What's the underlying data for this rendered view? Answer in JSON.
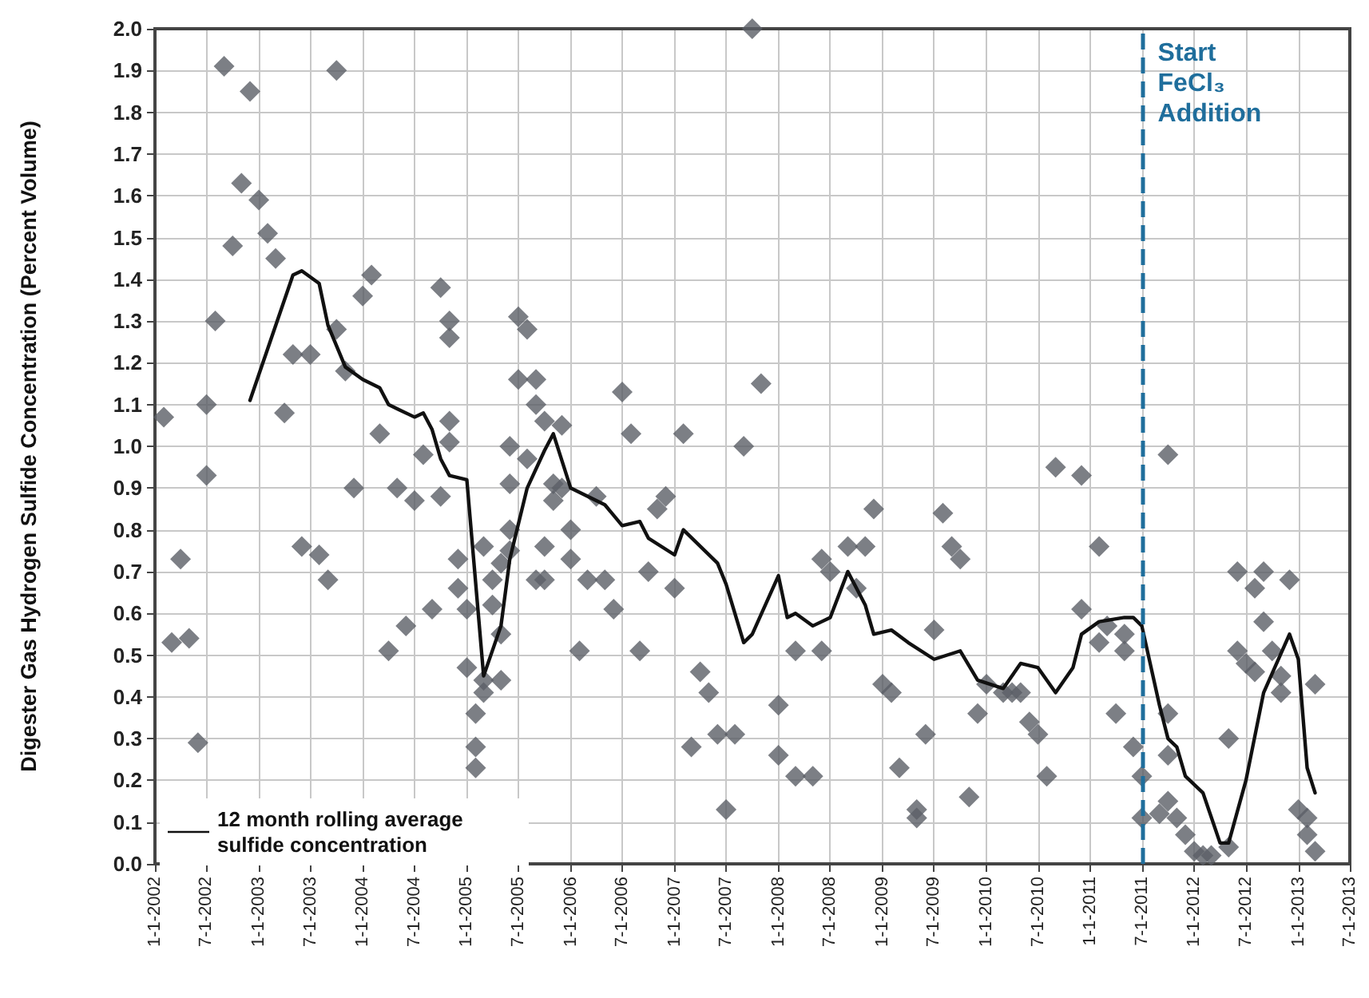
{
  "chart_data": {
    "type": "scatter",
    "ylabel": "Digester Gas Hydrogen Sulfide Concentration (Percent Volume)",
    "xlim": [
      "2002-01-01",
      "2013-07-01"
    ],
    "xticks": [
      {
        "value": "2002-01-01",
        "label": "1-1-2002"
      },
      {
        "value": "2002-07-01",
        "label": "7-1-2002"
      },
      {
        "value": "2003-01-01",
        "label": "1-1-2003"
      },
      {
        "value": "2003-07-01",
        "label": "7-1-2003"
      },
      {
        "value": "2004-01-01",
        "label": "1-1-2004"
      },
      {
        "value": "2004-07-01",
        "label": "7-1-2004"
      },
      {
        "value": "2005-01-01",
        "label": "1-1-2005"
      },
      {
        "value": "2005-07-01",
        "label": "7-1-2005"
      },
      {
        "value": "2006-01-01",
        "label": "1-1-2006"
      },
      {
        "value": "2006-07-01",
        "label": "7-1-2006"
      },
      {
        "value": "2007-01-01",
        "label": "1-1-2007"
      },
      {
        "value": "2007-07-01",
        "label": "7-1-2007"
      },
      {
        "value": "2008-01-01",
        "label": "1-1-2008"
      },
      {
        "value": "2008-07-01",
        "label": "7-1-2008"
      },
      {
        "value": "2009-01-01",
        "label": "1-1-2009"
      },
      {
        "value": "2009-07-01",
        "label": "7-1-2009"
      },
      {
        "value": "2010-01-01",
        "label": "1-1-2010"
      },
      {
        "value": "2010-07-01",
        "label": "7-1-2010"
      },
      {
        "value": "2011-01-01",
        "label": "1-1-2011"
      },
      {
        "value": "2011-07-01",
        "label": "7-1-2011"
      },
      {
        "value": "2012-01-01",
        "label": "1-1-2012"
      },
      {
        "value": "2012-07-01",
        "label": "7-1-2012"
      },
      {
        "value": "2013-01-01",
        "label": "1-1-2013"
      },
      {
        "value": "2013-07-01",
        "label": "7-1-2013"
      }
    ],
    "ylim": [
      0,
      2
    ],
    "yticks": [
      {
        "value": 0,
        "label": "0.0"
      },
      0.1,
      0.2,
      0.3,
      0.4,
      0.5,
      0.6,
      0.7,
      0.8,
      0.9,
      {
        "value": 1,
        "label": "1.0"
      },
      1.1,
      1.2,
      1.3,
      1.4,
      1.5,
      1.6,
      1.7,
      1.8,
      1.9,
      {
        "value": 2,
        "label": "2.0"
      }
    ],
    "grid": true,
    "legend": "bottom left",
    "ref_lines": [
      {
        "axis": "x",
        "value": "2011-07-01",
        "label": "Start FeCl₃ Addition",
        "color": "#1f6e9c",
        "line_style": "dashed"
      }
    ],
    "series": [
      {
        "color": "#5b5f66",
        "marker": "diamond",
        "x": [
          "2002-02",
          "2002-03",
          "2002-04",
          "2002-05",
          "2002-06",
          "2002-07",
          "2002-07",
          "2002-08",
          "2002-09",
          "2002-10",
          "2002-11",
          "2002-12",
          "2003-01",
          "2003-02",
          "2003-03",
          "2003-04",
          "2003-05",
          "2003-06",
          "2003-07",
          "2003-08",
          "2003-09",
          "2003-10",
          "2003-10",
          "2003-11",
          "2003-12",
          "2004-01",
          "2004-02",
          "2004-03",
          "2004-04",
          "2004-05",
          "2004-06",
          "2004-07",
          "2004-08",
          "2004-09",
          "2004-10",
          "2004-10",
          "2004-11",
          "2004-11",
          "2004-11",
          "2004-11",
          "2004-12",
          "2004-12",
          "2005-01",
          "2005-01",
          "2005-02",
          "2005-02",
          "2005-02",
          "2005-03",
          "2005-03",
          "2005-03",
          "2005-04",
          "2005-04",
          "2005-05",
          "2005-05",
          "2005-05",
          "2005-06",
          "2005-06",
          "2005-06",
          "2005-06",
          "2005-07",
          "2005-07",
          "2005-08",
          "2005-08",
          "2005-09",
          "2005-09",
          "2005-09",
          "2005-10",
          "2005-10",
          "2005-10",
          "2005-11",
          "2005-11",
          "2005-12",
          "2005-12",
          "2006-01",
          "2006-01",
          "2006-02",
          "2006-03",
          "2006-04",
          "2006-05",
          "2006-06",
          "2006-07",
          "2006-08",
          "2006-09",
          "2006-10",
          "2006-11",
          "2006-12",
          "2007-01",
          "2007-02",
          "2007-03",
          "2007-04",
          "2007-05",
          "2007-06",
          "2007-07",
          "2007-08",
          "2007-09",
          "2007-10",
          "2007-11",
          "2008-01",
          "2008-01",
          "2008-03",
          "2008-03",
          "2008-05",
          "2008-06",
          "2008-06",
          "2008-07",
          "2008-09",
          "2008-10",
          "2008-11",
          "2008-12",
          "2009-01",
          "2009-02",
          "2009-03",
          "2009-05",
          "2009-05",
          "2009-06",
          "2009-07",
          "2009-08",
          "2009-09",
          "2009-10",
          "2009-11",
          "2009-12",
          "2010-01",
          "2010-03",
          "2010-04",
          "2010-05",
          "2010-06",
          "2010-07",
          "2010-08",
          "2010-09",
          "2010-12",
          "2010-12",
          "2011-02",
          "2011-02",
          "2011-03",
          "2011-04",
          "2011-05",
          "2011-05",
          "2011-06",
          "2011-07",
          "2011-07",
          "2011-09",
          "2011-10",
          "2011-10",
          "2011-10",
          "2011-10",
          "2011-11",
          "2011-12",
          "2012-01",
          "2012-02",
          "2012-03",
          "2012-05",
          "2012-05",
          "2012-06",
          "2012-06",
          "2012-07",
          "2012-08",
          "2012-08",
          "2012-09",
          "2012-09",
          "2012-10",
          "2012-11",
          "2012-11",
          "2012-12",
          "2013-01",
          "2013-02",
          "2013-02",
          "2013-03",
          "2013-03"
        ],
        "values": [
          1.07,
          0.53,
          0.73,
          0.54,
          0.29,
          1.1,
          0.93,
          1.3,
          1.91,
          1.48,
          1.63,
          1.85,
          1.59,
          1.51,
          1.45,
          1.08,
          1.22,
          0.76,
          1.22,
          0.74,
          0.68,
          1.28,
          1.9,
          1.18,
          0.9,
          1.36,
          1.41,
          1.03,
          0.51,
          0.9,
          0.57,
          0.87,
          0.98,
          0.61,
          0.88,
          1.38,
          1.26,
          1.3,
          1.06,
          1.01,
          0.66,
          0.73,
          0.61,
          0.47,
          0.36,
          0.28,
          0.23,
          0.44,
          0.41,
          0.76,
          0.68,
          0.62,
          0.72,
          0.44,
          0.55,
          0.75,
          0.8,
          0.91,
          1.0,
          1.31,
          1.16,
          0.97,
          1.28,
          0.68,
          1.1,
          1.16,
          0.76,
          0.68,
          1.06,
          0.91,
          0.87,
          1.05,
          0.9,
          0.8,
          0.73,
          0.51,
          0.68,
          0.88,
          0.68,
          0.61,
          1.13,
          1.03,
          0.51,
          0.7,
          0.85,
          0.88,
          0.66,
          1.03,
          0.28,
          0.46,
          0.41,
          0.31,
          0.13,
          0.31,
          1.0,
          2.0,
          1.15,
          0.26,
          0.38,
          0.51,
          0.21,
          0.21,
          0.51,
          0.73,
          0.7,
          0.76,
          0.66,
          0.76,
          0.85,
          0.43,
          0.41,
          0.23,
          0.13,
          0.11,
          0.31,
          0.56,
          0.84,
          0.76,
          0.73,
          0.16,
          0.36,
          0.43,
          0.41,
          0.41,
          0.41,
          0.34,
          0.31,
          0.21,
          0.95,
          0.93,
          0.61,
          0.76,
          0.53,
          0.57,
          0.36,
          0.55,
          0.51,
          0.28,
          0.21,
          0.11,
          0.12,
          0.15,
          0.36,
          0.98,
          0.26,
          0.11,
          0.07,
          0.03,
          0.02,
          0.02,
          0.04,
          0.3,
          0.7,
          0.51,
          0.48,
          0.46,
          0.66,
          0.58,
          0.7,
          0.51,
          0.45,
          0.41,
          0.68,
          0.13,
          0.11,
          0.07,
          0.03,
          0.43
        ]
      },
      {
        "type": "line",
        "name": "12 month rolling average sulfide concentration",
        "color": "#111111",
        "marker": "none",
        "line_style": "solid",
        "x": [
          "2002-12",
          "2003-05",
          "2003-06",
          "2003-08",
          "2003-09",
          "2003-11",
          "2004-01",
          "2004-03",
          "2004-04",
          "2004-05",
          "2004-07",
          "2004-08",
          "2004-09",
          "2004-10",
          "2004-11",
          "2005-01",
          "2005-03",
          "2005-05",
          "2005-06",
          "2005-08",
          "2005-10",
          "2005-11",
          "2006-01",
          "2006-05",
          "2006-07",
          "2006-09",
          "2006-10",
          "2007-01",
          "2007-02",
          "2007-06",
          "2007-07",
          "2007-09",
          "2007-10",
          "2008-01",
          "2008-02",
          "2008-03",
          "2008-05",
          "2008-07",
          "2008-09",
          "2008-11",
          "2008-12",
          "2009-02",
          "2009-04",
          "2009-07",
          "2009-10",
          "2009-12",
          "2010-03",
          "2010-05",
          "2010-07",
          "2010-09",
          "2010-11",
          "2010-12",
          "2011-02",
          "2011-05",
          "2011-06",
          "2011-07",
          "2011-09",
          "2011-10",
          "2011-11",
          "2011-12",
          "2012-02",
          "2012-04",
          "2012-05",
          "2012-07",
          "2012-09",
          "2012-12",
          "2013-01",
          "2013-02",
          "2013-03"
        ],
        "values": [
          1.11,
          1.41,
          1.42,
          1.39,
          1.29,
          1.19,
          1.16,
          1.14,
          1.1,
          1.09,
          1.07,
          1.08,
          1.04,
          0.97,
          0.93,
          0.92,
          0.45,
          0.57,
          0.73,
          0.9,
          0.99,
          1.03,
          0.9,
          0.86,
          0.81,
          0.82,
          0.78,
          0.74,
          0.8,
          0.72,
          0.67,
          0.53,
          0.55,
          0.69,
          0.59,
          0.6,
          0.57,
          0.59,
          0.7,
          0.62,
          0.55,
          0.56,
          0.53,
          0.49,
          0.51,
          0.44,
          0.42,
          0.48,
          0.47,
          0.41,
          0.47,
          0.55,
          0.58,
          0.59,
          0.59,
          0.57,
          0.38,
          0.3,
          0.28,
          0.21,
          0.17,
          0.05,
          0.05,
          0.2,
          0.41,
          0.55,
          0.49,
          0.23,
          0.17
        ]
      }
    ]
  }
}
